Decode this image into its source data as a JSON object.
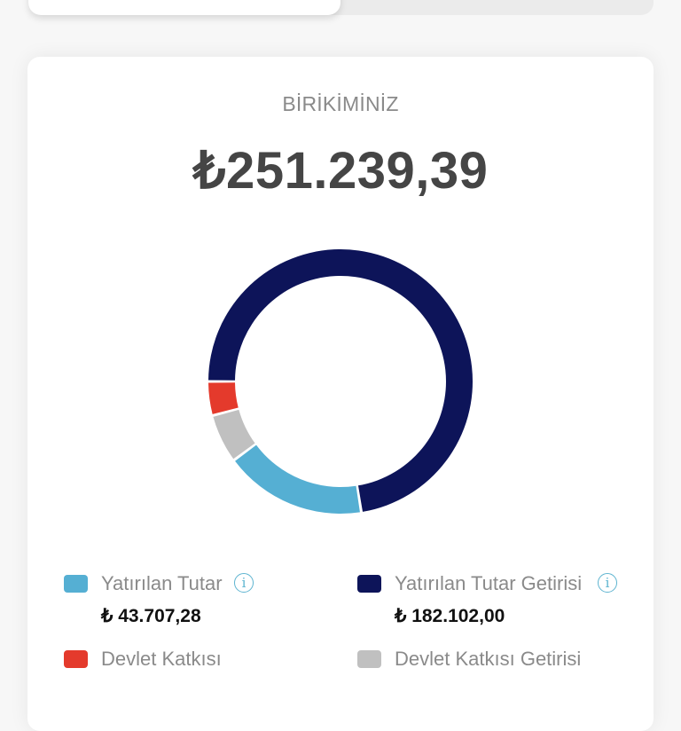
{
  "top_tabs": {
    "active_index": 0
  },
  "card": {
    "title": "BİRİKİMİNİZ",
    "total": "₺251.239,39"
  },
  "legend": [
    {
      "label": "Yatırılan Tutar",
      "value": "₺ 43.707,28",
      "color": "#55afd3",
      "info": true,
      "info_icon": "info-circle-icon"
    },
    {
      "label": "Yatırılan Tutar Getirisi",
      "value": "₺ 182.102,00",
      "color": "#0d1459",
      "info": true,
      "info_icon": "info-circle-icon"
    },
    {
      "label": "Devlet Katkısı",
      "value": "",
      "color": "#e43a2c",
      "info": false
    },
    {
      "label": "Devlet Katkısı Getirisi",
      "value": "",
      "color": "#c0c0c0",
      "info": false
    }
  ],
  "chart_data": {
    "type": "pie",
    "subtype": "donut",
    "title": "BİRİKİMİNİZ",
    "total": 251239.39,
    "categories": [
      "Yatırılan Tutar Getirisi",
      "Yatırılan Tutar",
      "Devlet Katkısı Getirisi",
      "Devlet Katkısı"
    ],
    "values": [
      182102.0,
      43707.28,
      15000,
      10430.11
    ],
    "colors": [
      "#0d1459",
      "#55afd3",
      "#c0c0c0",
      "#e43a2c"
    ],
    "start_angle_deg_from_top": 270,
    "direction": "clockwise",
    "note": "Devlet Katkısı and Devlet Katkısı Getirisi values not shown on screen; estimated from arc sizes (remainder 25,430.11)"
  }
}
